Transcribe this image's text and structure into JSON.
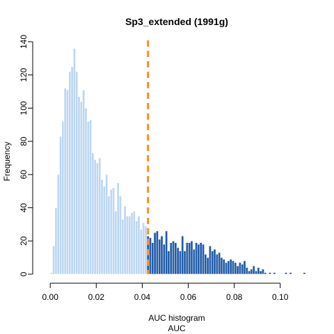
{
  "chart_data": {
    "type": "bar",
    "title": "Sp3_extended (1991g)",
    "xlabel": "AUC",
    "xlabel_top": "AUC histogram",
    "ylabel": "Frequency",
    "xlim": [
      -0.004,
      0.114
    ],
    "ylim": [
      0,
      140
    ],
    "xticks": [
      0.0,
      0.02,
      0.04,
      0.06,
      0.08,
      0.1
    ],
    "xtick_labels": [
      "0.00",
      "0.02",
      "0.04",
      "0.06",
      "0.08",
      "0.10"
    ],
    "yticks": [
      0,
      20,
      40,
      60,
      80,
      100,
      120,
      140
    ],
    "ytick_labels": [
      "0",
      "20",
      "40",
      "60",
      "80",
      "100",
      "120",
      "140"
    ],
    "bin_width": 0.001,
    "bin_start": 0.0,
    "threshold": 0.0425,
    "colors": {
      "below_threshold": "#bdd7f2",
      "above_threshold": "#1f5aa6",
      "threshold_line": "#ff8c1a",
      "bar_edge": "#ffffff"
    },
    "grid": false,
    "legend": "none",
    "values": [
      1,
      17,
      40,
      60,
      83,
      92,
      112,
      111,
      122,
      125,
      136,
      122,
      107,
      104,
      111,
      100,
      92,
      93,
      73,
      69,
      67,
      70,
      57,
      53,
      60,
      47,
      51,
      52,
      38,
      55,
      47,
      33,
      41,
      35,
      35,
      37,
      38,
      32,
      35,
      27,
      31,
      29,
      23,
      22,
      19,
      25,
      26,
      21,
      23,
      18,
      26,
      14,
      19,
      20,
      19,
      16,
      14,
      23,
      14,
      19,
      19,
      20,
      15,
      19,
      18,
      19,
      18,
      12,
      10,
      17,
      14,
      15,
      12,
      13,
      10,
      9,
      7,
      8,
      9,
      8,
      7,
      5,
      7,
      6,
      8,
      4,
      2,
      3,
      5,
      2,
      4,
      2,
      3,
      1,
      0,
      1,
      0,
      1,
      0,
      0,
      0,
      0,
      1,
      0,
      1,
      0,
      0,
      0,
      0,
      0,
      1,
      0
    ]
  }
}
